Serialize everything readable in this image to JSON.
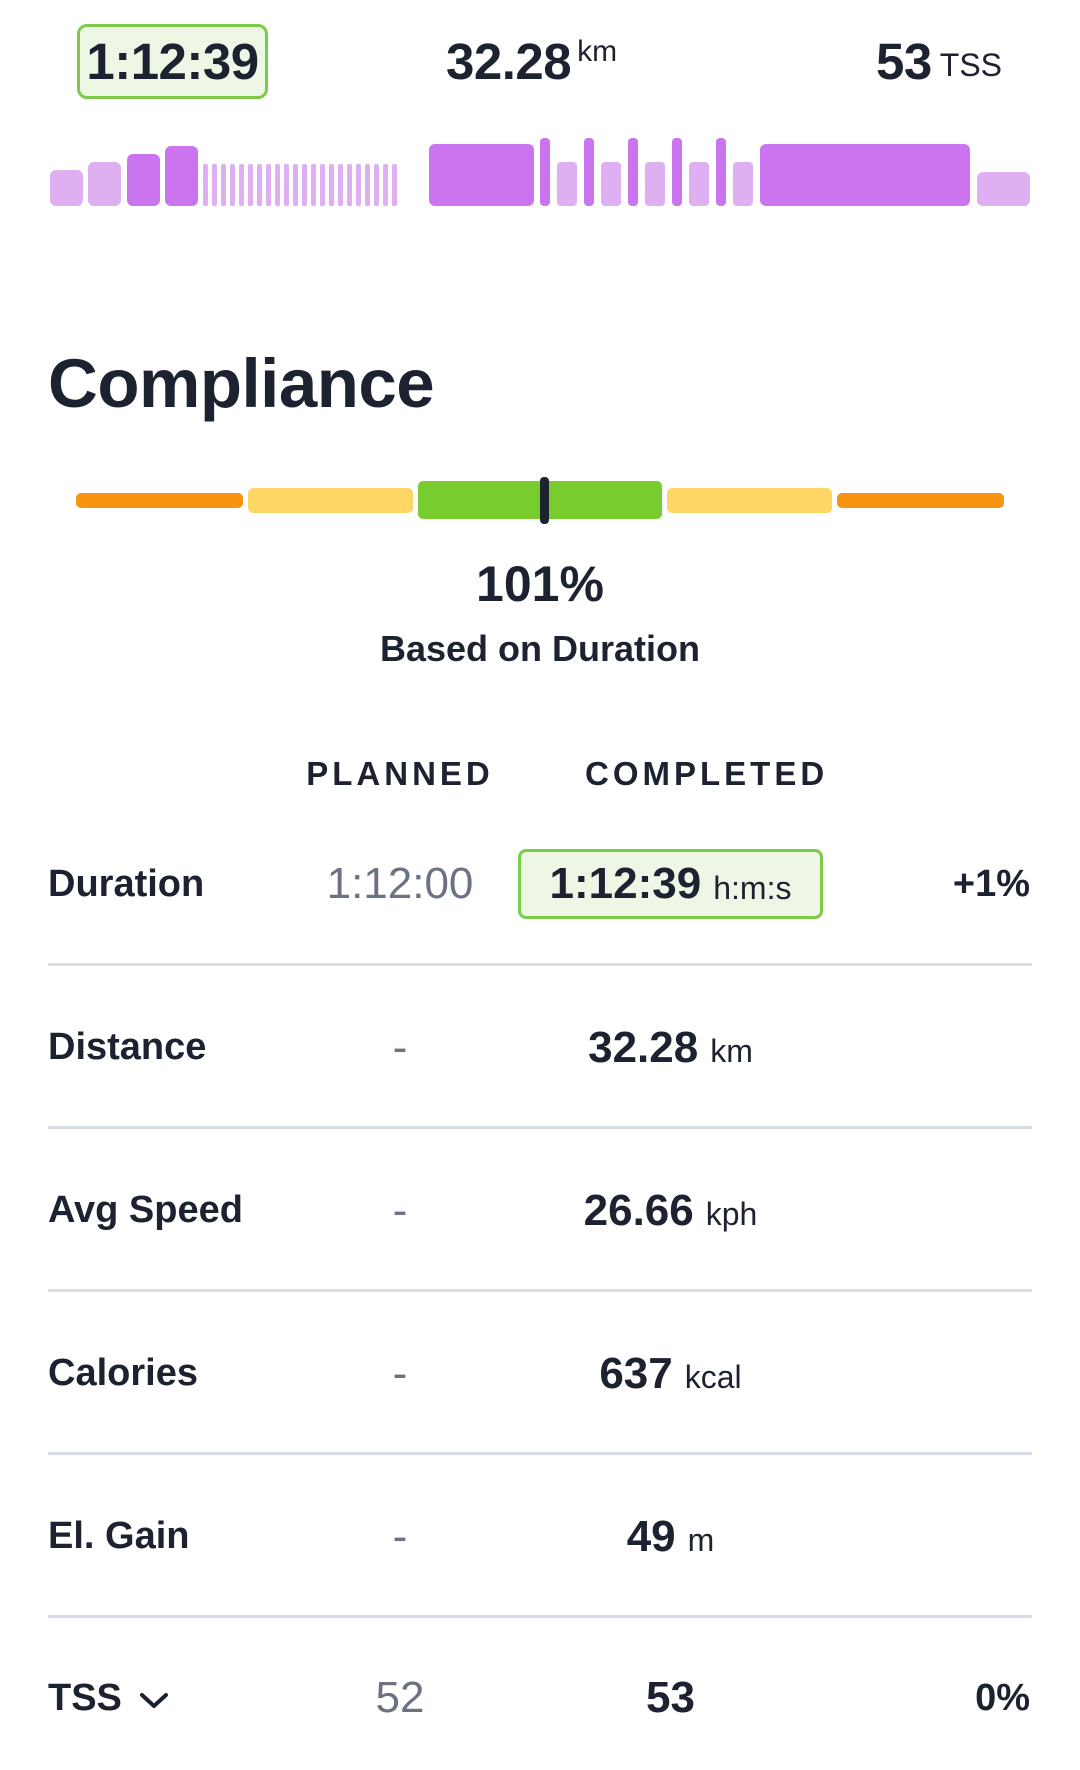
{
  "summary": {
    "duration": "1:12:39",
    "distance_value": "32.28",
    "distance_unit": "km",
    "tss_value": "53",
    "tss_unit": "TSS"
  },
  "workout_profile": {
    "color_light": "#deb0f2",
    "color_dark": "#cb74f0",
    "color_bg_fade": "#e8c8f6"
  },
  "compliance": {
    "title": "Compliance",
    "percent": "101%",
    "basis": "Based on Duration",
    "colors": {
      "orange": "#f79410",
      "yellow": "#fdd666",
      "green": "#79cc2e",
      "marker": "#1c2230"
    }
  },
  "table": {
    "header_planned": "PLANNED",
    "header_completed": "COMPLETED",
    "rows": [
      {
        "label": "Duration",
        "planned": "1:12:00",
        "completed": "1:12:39",
        "unit": "h:m:s",
        "diff": "+1%"
      },
      {
        "label": "Distance",
        "planned": "-",
        "completed": "32.28",
        "unit": "km",
        "diff": ""
      },
      {
        "label": "Avg Speed",
        "planned": "-",
        "completed": "26.66",
        "unit": "kph",
        "diff": ""
      },
      {
        "label": "Calories",
        "planned": "-",
        "completed": "637",
        "unit": "kcal",
        "diff": ""
      },
      {
        "label": "El. Gain",
        "planned": "-",
        "completed": "49",
        "unit": "m",
        "diff": ""
      },
      {
        "label": "TSS",
        "planned": "52",
        "completed": "53",
        "unit": "",
        "diff": "0%",
        "icon": "chevron-down-icon"
      }
    ]
  },
  "accent_green": "#7ccb4a",
  "accent_green_bg": "#eef7e6"
}
